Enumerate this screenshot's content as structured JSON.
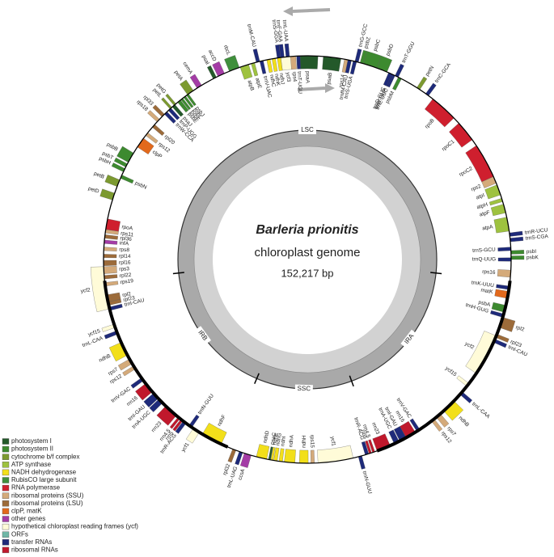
{
  "title": "Barleria prionitis",
  "subtitle": "chloroplast genome",
  "length": "152,217 bp",
  "regions": [
    "LSC",
    "IRA",
    "SSC",
    "IRB"
  ],
  "legend": [
    {
      "label": "photosystem I",
      "color": "#24592a"
    },
    {
      "label": "photosystem II",
      "color": "#3d8a2f"
    },
    {
      "label": "cytochrome b/f complex",
      "color": "#7c9a30"
    },
    {
      "label": "ATP synthase",
      "color": "#9ec23f"
    },
    {
      "label": "NADH dehydrogenase",
      "color": "#f2df1a"
    },
    {
      "label": "RubisCO large subunit",
      "color": "#3f8f3c"
    },
    {
      "label": "RNA polymerase",
      "color": "#cf1f2e"
    },
    {
      "label": "ribosomal proteins (SSU)",
      "color": "#d4aa7a"
    },
    {
      "label": "ribosomal proteins (LSU)",
      "color": "#9c6b3a"
    },
    {
      "label": "clpP, matK",
      "color": "#e2691c"
    },
    {
      "label": "other genes",
      "color": "#a43ca6"
    },
    {
      "label": "hypothetical chloroplast reading frames (ycf)",
      "color": "#fffbd8"
    },
    {
      "label": "ORFs",
      "color": "#6fb7a7"
    },
    {
      "label": "transfer RNAs",
      "color": "#1e2a7a"
    },
    {
      "label": "ribosomal RNAs",
      "color": "#c0182c"
    }
  ],
  "genes": [
    {
      "name": "trnS-GGA",
      "group": 13
    },
    {
      "name": "ycf3",
      "group": 11
    },
    {
      "name": "psaA",
      "group": 0
    },
    {
      "name": "psaB",
      "group": 0
    },
    {
      "name": "rps14",
      "group": 7
    },
    {
      "name": "trnfM-CAU",
      "group": 13
    },
    {
      "name": "trnS-UGA",
      "group": 13
    },
    {
      "name": "trnG-GCC",
      "group": 13
    },
    {
      "name": "psbZ",
      "group": 1
    },
    {
      "name": "psbC",
      "group": 1
    },
    {
      "name": "psbD",
      "group": 1
    },
    {
      "name": "trnT-GGU",
      "group": 13
    },
    {
      "name": "trnE-UUC",
      "group": 13
    },
    {
      "name": "trnY-GUA",
      "group": 13
    },
    {
      "name": "trnD-GUC",
      "group": 13
    },
    {
      "name": "psbM",
      "group": 1
    },
    {
      "name": "petN",
      "group": 2
    },
    {
      "name": "trnC-GCA",
      "group": 13
    },
    {
      "name": "rpoB",
      "group": 6
    },
    {
      "name": "rpoC1",
      "group": 6
    },
    {
      "name": "rpoC2",
      "group": 6
    },
    {
      "name": "rps2",
      "group": 7
    },
    {
      "name": "atpI",
      "group": 3
    },
    {
      "name": "atpH",
      "group": 3
    },
    {
      "name": "atpF",
      "group": 3
    },
    {
      "name": "atpA",
      "group": 3
    },
    {
      "name": "trnR-UCU",
      "group": 13
    },
    {
      "name": "trnS-CGA",
      "group": 13
    },
    {
      "name": "psbI",
      "group": 1
    },
    {
      "name": "psbK",
      "group": 1
    },
    {
      "name": "trnS-GCU",
      "group": 13
    },
    {
      "name": "trnQ-UUG",
      "group": 13
    },
    {
      "name": "rps16",
      "group": 7
    },
    {
      "name": "trnK-UUU",
      "group": 13
    },
    {
      "name": "matK",
      "group": 9
    },
    {
      "name": "psbA",
      "group": 1
    },
    {
      "name": "trnH-GUG",
      "group": 13
    },
    {
      "name": "rpl2",
      "group": 8
    },
    {
      "name": "rpl23",
      "group": 8
    },
    {
      "name": "trnI-CAU",
      "group": 13
    },
    {
      "name": "ycf2",
      "group": 11
    },
    {
      "name": "ycf15",
      "group": 11
    },
    {
      "name": "trnL-CAA",
      "group": 13
    },
    {
      "name": "ndhB",
      "group": 4
    },
    {
      "name": "rps7",
      "group": 7
    },
    {
      "name": "rps12",
      "group": 7
    },
    {
      "name": "trnV-GAC",
      "group": 13
    },
    {
      "name": "rrn16",
      "group": 14
    },
    {
      "name": "trnI-GAU",
      "group": 13
    },
    {
      "name": "trnA-UGC",
      "group": 13
    },
    {
      "name": "rrn23",
      "group": 14
    },
    {
      "name": "rrn4.5",
      "group": 14
    },
    {
      "name": "rrn5",
      "group": 14
    },
    {
      "name": "trnR-ACG",
      "group": 13
    },
    {
      "name": "trnN-GUU",
      "group": 13
    },
    {
      "name": "ycf1",
      "group": 11
    },
    {
      "name": "rps15",
      "group": 7
    },
    {
      "name": "ndhH",
      "group": 4
    },
    {
      "name": "ndhA",
      "group": 4
    },
    {
      "name": "ndhI",
      "group": 4
    },
    {
      "name": "ndhG",
      "group": 4
    },
    {
      "name": "ndhE",
      "group": 4
    },
    {
      "name": "psaC",
      "group": 0
    },
    {
      "name": "ndhD",
      "group": 4
    },
    {
      "name": "ccsA",
      "group": 10
    },
    {
      "name": "trnL-UAG",
      "group": 13
    },
    {
      "name": "rpl32",
      "group": 8
    },
    {
      "name": "ndhF",
      "group": 4
    },
    {
      "name": "ycf1",
      "group": 11
    },
    {
      "name": "trnN-GUU",
      "group": 13
    },
    {
      "name": "trnR-ACG",
      "group": 13
    },
    {
      "name": "rrn5",
      "group": 14
    },
    {
      "name": "rrn4.5",
      "group": 14
    },
    {
      "name": "rrn23",
      "group": 14
    },
    {
      "name": "trnA-UGC",
      "group": 13
    },
    {
      "name": "trnI-GAU",
      "group": 13
    },
    {
      "name": "rrn16",
      "group": 14
    },
    {
      "name": "trnV-GAC",
      "group": 13
    },
    {
      "name": "rps12",
      "group": 7
    },
    {
      "name": "rps7",
      "group": 7
    },
    {
      "name": "ndhB",
      "group": 4
    },
    {
      "name": "trnL-CAA",
      "group": 13
    },
    {
      "name": "ycf15",
      "group": 11
    },
    {
      "name": "ycf2",
      "group": 11
    },
    {
      "name": "trnI-CAU",
      "group": 13
    },
    {
      "name": "rpl23",
      "group": 8
    },
    {
      "name": "rpl2",
      "group": 8
    },
    {
      "name": "rps19",
      "group": 7
    },
    {
      "name": "rpl22",
      "group": 8
    },
    {
      "name": "rps3",
      "group": 7
    },
    {
      "name": "rpl16",
      "group": 8
    },
    {
      "name": "rpl14",
      "group": 8
    },
    {
      "name": "rps8",
      "group": 7
    },
    {
      "name": "infA",
      "group": 10
    },
    {
      "name": "rpl36",
      "group": 8
    },
    {
      "name": "rps11",
      "group": 7
    },
    {
      "name": "rpoA",
      "group": 6
    },
    {
      "name": "petD",
      "group": 2
    },
    {
      "name": "petB",
      "group": 2
    },
    {
      "name": "psbN",
      "group": 1
    },
    {
      "name": "psbH",
      "group": 1
    },
    {
      "name": "psbT",
      "group": 1
    },
    {
      "name": "psbB",
      "group": 1
    },
    {
      "name": "clpP",
      "group": 9
    },
    {
      "name": "rps12",
      "group": 7
    },
    {
      "name": "rpl20",
      "group": 8
    },
    {
      "name": "rps18",
      "group": 7
    },
    {
      "name": "rpl33",
      "group": 8
    },
    {
      "name": "trnW-CCA",
      "group": 13
    },
    {
      "name": "trnP-UGG",
      "group": 13
    },
    {
      "name": "psaJ",
      "group": 0
    },
    {
      "name": "psbE",
      "group": 1
    },
    {
      "name": "psbF",
      "group": 1
    },
    {
      "name": "psbL",
      "group": 1
    },
    {
      "name": "psbJ",
      "group": 1
    },
    {
      "name": "petL",
      "group": 2
    },
    {
      "name": "petG",
      "group": 2
    },
    {
      "name": "petA",
      "group": 2
    },
    {
      "name": "cemA",
      "group": 10
    },
    {
      "name": "psaI",
      "group": 0
    },
    {
      "name": "accD",
      "group": 10
    },
    {
      "name": "rbcL",
      "group": 5
    },
    {
      "name": "atpB",
      "group": 3
    },
    {
      "name": "atpE",
      "group": 3
    },
    {
      "name": "trnM-CAU",
      "group": 13
    },
    {
      "name": "trnV-UAC",
      "group": 13
    },
    {
      "name": "ndhC",
      "group": 4
    },
    {
      "name": "ndhK",
      "group": 4
    },
    {
      "name": "ndhJ",
      "group": 4
    },
    {
      "name": "trnF-GAA",
      "group": 13
    },
    {
      "name": "trnL-UAA",
      "group": 13
    },
    {
      "name": "rps4",
      "group": 7
    },
    {
      "name": "trnT-UGU",
      "group": 13
    }
  ]
}
